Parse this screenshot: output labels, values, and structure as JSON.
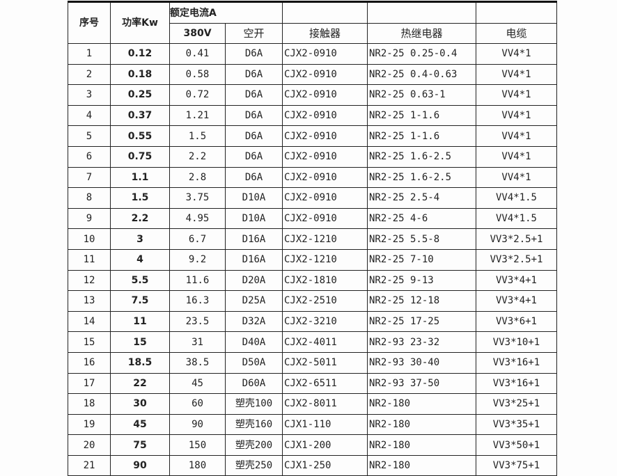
{
  "header": {
    "no": "序号",
    "power": "功率Kw",
    "rated_current": "额定电流A",
    "v380": "380V",
    "breaker": "空开",
    "contactor": "接触器",
    "thermal_relay": "热继电器",
    "cable": "电缆"
  },
  "rows": [
    [
      "1",
      "0.12",
      "0.41",
      "D6A",
      "CJX2-0910",
      "NR2-25 0.25-0.4",
      "VV4*1"
    ],
    [
      "2",
      "0.18",
      "0.58",
      "D6A",
      "CJX2-0910",
      "NR2-25 0.4-0.63",
      "VV4*1"
    ],
    [
      "3",
      "0.25",
      "0.72",
      "D6A",
      "CJX2-0910",
      "NR2-25 0.63-1",
      "VV4*1"
    ],
    [
      "4",
      "0.37",
      "1.21",
      "D6A",
      "CJX2-0910",
      "NR2-25 1-1.6",
      "VV4*1"
    ],
    [
      "5",
      "0.55",
      "1.5",
      "D6A",
      "CJX2-0910",
      "NR2-25 1-1.6",
      "VV4*1"
    ],
    [
      "6",
      "0.75",
      "2.2",
      "D6A",
      "CJX2-0910",
      "NR2-25 1.6-2.5",
      "VV4*1"
    ],
    [
      "7",
      "1.1",
      "2.8",
      "D6A",
      "CJX2-0910",
      "NR2-25 1.6-2.5",
      "VV4*1"
    ],
    [
      "8",
      "1.5",
      "3.75",
      "D10A",
      "CJX2-0910",
      "NR2-25 2.5-4",
      "VV4*1.5"
    ],
    [
      "9",
      "2.2",
      "4.95",
      "D10A",
      "CJX2-0910",
      "NR2-25 4-6",
      "VV4*1.5"
    ],
    [
      "10",
      "3",
      "6.7",
      "D16A",
      "CJX2-1210",
      "NR2-25 5.5-8",
      "VV3*2.5+1"
    ],
    [
      "11",
      "4",
      "9.2",
      "D16A",
      "CJX2-1210",
      "NR2-25 7-10",
      "VV3*2.5+1"
    ],
    [
      "12",
      "5.5",
      "11.6",
      "D20A",
      "CJX2-1810",
      "NR2-25 9-13",
      "VV3*4+1"
    ],
    [
      "13",
      "7.5",
      "16.3",
      "D25A",
      "CJX2-2510",
      "NR2-25 12-18",
      "VV3*4+1"
    ],
    [
      "14",
      "11",
      "23.5",
      "D32A",
      "CJX2-3210",
      "NR2-25 17-25",
      "VV3*6+1"
    ],
    [
      "15",
      "15",
      "31",
      "D40A",
      "CJX2-4011",
      "NR2-93 23-32",
      "VV3*10+1"
    ],
    [
      "16",
      "18.5",
      "38.5",
      "D50A",
      "CJX2-5011",
      "NR2-93 30-40",
      "VV3*16+1"
    ],
    [
      "17",
      "22",
      "45",
      "D60A",
      "CJX2-6511",
      "NR2-93 37-50",
      "VV3*16+1"
    ],
    [
      "18",
      "30",
      "60",
      "塑壳100",
      "CJX2-8011",
      "NR2-180",
      "VV3*25+1"
    ],
    [
      "19",
      "45",
      "90",
      "塑壳160",
      "CJX1-110",
      "NR2-180",
      "VV3*35+1"
    ],
    [
      "20",
      "75",
      "150",
      "塑壳200",
      "CJX1-200",
      "NR2-180",
      "VV3*50+1"
    ],
    [
      "21",
      "90",
      "180",
      "塑壳250",
      "CJX1-250",
      "NR2-180",
      "VV3*75+1"
    ]
  ]
}
